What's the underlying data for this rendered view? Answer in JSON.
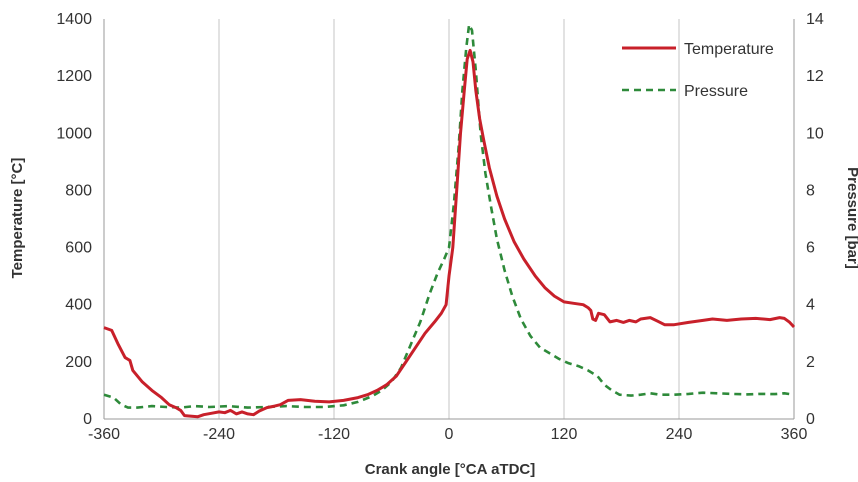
{
  "chart_data": {
    "type": "line",
    "xlabel": "Crank angle [°CA aTDC]",
    "ylabel_left": "Temperature [°C]",
    "ylabel_right": "Pressure [bar]",
    "xlim": [
      -360,
      360
    ],
    "ylim_left": [
      0,
      1400
    ],
    "ylim_right": [
      0,
      14
    ],
    "x_ticks": [
      -360,
      -240,
      -120,
      0,
      120,
      240,
      360
    ],
    "y_left_ticks": [
      0,
      200,
      400,
      600,
      800,
      1000,
      1200,
      1400
    ],
    "y_right_ticks": [
      0,
      2,
      4,
      6,
      8,
      10,
      12,
      14
    ],
    "grid": "vertical",
    "legend_position": "top-right",
    "series": [
      {
        "name": "Temperature",
        "axis": "left",
        "color": "#c8202a",
        "style": "solid",
        "points": [
          [
            -360,
            320
          ],
          [
            -352,
            310
          ],
          [
            -345,
            260
          ],
          [
            -338,
            215
          ],
          [
            -333,
            205
          ],
          [
            -330,
            170
          ],
          [
            -320,
            130
          ],
          [
            -310,
            100
          ],
          [
            -300,
            75
          ],
          [
            -292,
            50
          ],
          [
            -285,
            40
          ],
          [
            -280,
            30
          ],
          [
            -276,
            12
          ],
          [
            -270,
            10
          ],
          [
            -262,
            8
          ],
          [
            -256,
            15
          ],
          [
            -248,
            20
          ],
          [
            -240,
            25
          ],
          [
            -234,
            22
          ],
          [
            -228,
            30
          ],
          [
            -222,
            18
          ],
          [
            -216,
            25
          ],
          [
            -210,
            18
          ],
          [
            -204,
            15
          ],
          [
            -198,
            28
          ],
          [
            -190,
            40
          ],
          [
            -182,
            45
          ],
          [
            -176,
            50
          ],
          [
            -168,
            65
          ],
          [
            -155,
            68
          ],
          [
            -140,
            62
          ],
          [
            -125,
            60
          ],
          [
            -110,
            65
          ],
          [
            -95,
            75
          ],
          [
            -85,
            85
          ],
          [
            -75,
            100
          ],
          [
            -65,
            120
          ],
          [
            -55,
            150
          ],
          [
            -45,
            200
          ],
          [
            -35,
            250
          ],
          [
            -25,
            300
          ],
          [
            -15,
            340
          ],
          [
            -8,
            370
          ],
          [
            -3,
            400
          ],
          [
            0,
            500
          ],
          [
            4,
            600
          ],
          [
            8,
            800
          ],
          [
            12,
            1000
          ],
          [
            16,
            1150
          ],
          [
            19,
            1260
          ],
          [
            22,
            1290
          ],
          [
            25,
            1250
          ],
          [
            28,
            1150
          ],
          [
            32,
            1050
          ],
          [
            36,
            980
          ],
          [
            42,
            880
          ],
          [
            50,
            780
          ],
          [
            58,
            700
          ],
          [
            68,
            620
          ],
          [
            78,
            560
          ],
          [
            90,
            500
          ],
          [
            100,
            460
          ],
          [
            110,
            430
          ],
          [
            120,
            410
          ],
          [
            130,
            405
          ],
          [
            140,
            400
          ],
          [
            145,
            390
          ],
          [
            148,
            380
          ],
          [
            150,
            350
          ],
          [
            153,
            345
          ],
          [
            156,
            370
          ],
          [
            162,
            365
          ],
          [
            168,
            340
          ],
          [
            175,
            345
          ],
          [
            182,
            338
          ],
          [
            188,
            345
          ],
          [
            195,
            340
          ],
          [
            200,
            350
          ],
          [
            210,
            355
          ],
          [
            218,
            342
          ],
          [
            225,
            330
          ],
          [
            235,
            330
          ],
          [
            250,
            338
          ],
          [
            265,
            345
          ],
          [
            275,
            350
          ],
          [
            290,
            345
          ],
          [
            305,
            350
          ],
          [
            320,
            352
          ],
          [
            335,
            348
          ],
          [
            345,
            355
          ],
          [
            350,
            352
          ],
          [
            355,
            340
          ],
          [
            360,
            322
          ]
        ]
      },
      {
        "name": "Pressure",
        "axis": "right",
        "color": "#2e8a3a",
        "style": "dashed",
        "points": [
          [
            -360,
            0.85
          ],
          [
            -350,
            0.75
          ],
          [
            -342,
            0.5
          ],
          [
            -335,
            0.4
          ],
          [
            -325,
            0.4
          ],
          [
            -310,
            0.45
          ],
          [
            -295,
            0.42
          ],
          [
            -280,
            0.4
          ],
          [
            -265,
            0.45
          ],
          [
            -250,
            0.42
          ],
          [
            -230,
            0.45
          ],
          [
            -210,
            0.4
          ],
          [
            -190,
            0.42
          ],
          [
            -170,
            0.45
          ],
          [
            -150,
            0.42
          ],
          [
            -130,
            0.42
          ],
          [
            -110,
            0.48
          ],
          [
            -95,
            0.6
          ],
          [
            -80,
            0.8
          ],
          [
            -70,
            1.0
          ],
          [
            -60,
            1.3
          ],
          [
            -50,
            1.8
          ],
          [
            -40,
            2.6
          ],
          [
            -30,
            3.4
          ],
          [
            -20,
            4.4
          ],
          [
            -12,
            5.1
          ],
          [
            -5,
            5.6
          ],
          [
            0,
            6.0
          ],
          [
            5,
            7.5
          ],
          [
            10,
            9.5
          ],
          [
            14,
            11.5
          ],
          [
            18,
            13.0
          ],
          [
            21,
            13.8
          ],
          [
            24,
            13.6
          ],
          [
            28,
            12.2
          ],
          [
            33,
            10.0
          ],
          [
            38,
            8.6
          ],
          [
            44,
            7.4
          ],
          [
            50,
            6.3
          ],
          [
            58,
            5.2
          ],
          [
            66,
            4.3
          ],
          [
            75,
            3.5
          ],
          [
            85,
            2.9
          ],
          [
            95,
            2.5
          ],
          [
            105,
            2.3
          ],
          [
            115,
            2.1
          ],
          [
            125,
            1.95
          ],
          [
            135,
            1.85
          ],
          [
            145,
            1.7
          ],
          [
            155,
            1.5
          ],
          [
            162,
            1.2
          ],
          [
            170,
            1.0
          ],
          [
            178,
            0.85
          ],
          [
            190,
            0.82
          ],
          [
            200,
            0.85
          ],
          [
            210,
            0.9
          ],
          [
            220,
            0.85
          ],
          [
            235,
            0.85
          ],
          [
            250,
            0.88
          ],
          [
            265,
            0.92
          ],
          [
            280,
            0.9
          ],
          [
            295,
            0.88
          ],
          [
            310,
            0.86
          ],
          [
            325,
            0.88
          ],
          [
            340,
            0.87
          ],
          [
            350,
            0.9
          ],
          [
            360,
            0.85
          ]
        ]
      }
    ]
  }
}
